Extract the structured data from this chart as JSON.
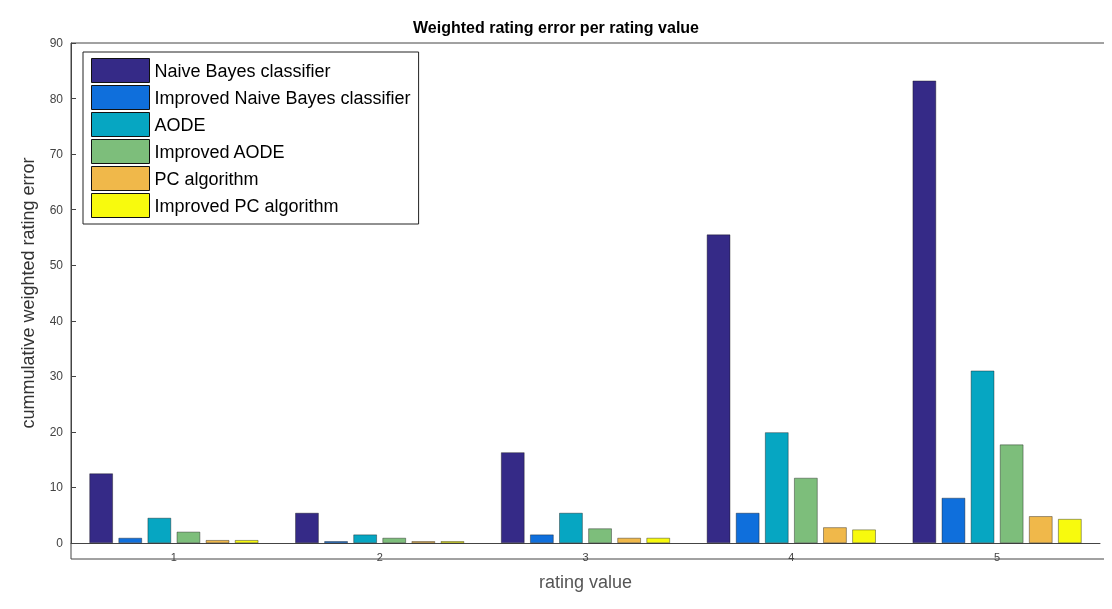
{
  "chart_data": {
    "type": "bar",
    "title": "Weighted rating error per rating value",
    "xlabel": "rating value",
    "ylabel": "cummulative weighted rating error",
    "categories": [
      "1",
      "2",
      "3",
      "4",
      "5"
    ],
    "series": [
      {
        "name": "Naive Bayes classifier",
        "color": "#352a87",
        "values": [
          12.5,
          5.4,
          16.3,
          55.5,
          83.2
        ]
      },
      {
        "name": "Improved Naive Bayes classifier",
        "color": "#0f6fdc",
        "values": [
          0.9,
          0.3,
          1.5,
          5.4,
          8.1
        ]
      },
      {
        "name": "AODE",
        "color": "#06a6c2",
        "values": [
          4.5,
          1.5,
          5.4,
          19.9,
          31.0
        ]
      },
      {
        "name": "Improved AODE",
        "color": "#7dbe7b",
        "values": [
          2.0,
          0.9,
          2.6,
          11.7,
          17.7
        ]
      },
      {
        "name": "PC algorithm",
        "color": "#f0b84a",
        "values": [
          0.5,
          0.3,
          0.9,
          2.8,
          4.8
        ]
      },
      {
        "name": "Improved PC algorithm",
        "color": "#f8fa0d",
        "values": [
          0.5,
          0.3,
          0.9,
          2.4,
          4.3
        ]
      }
    ],
    "ylim": [
      0,
      90
    ],
    "yticks": [
      0,
      10,
      20,
      30,
      40,
      50,
      60,
      70,
      80,
      90
    ],
    "grid": false,
    "legend": "top left"
  }
}
